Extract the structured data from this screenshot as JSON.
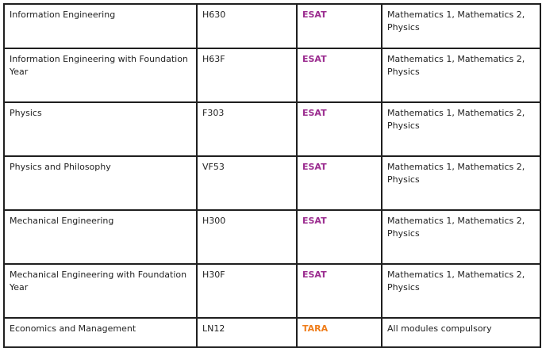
{
  "colors": {
    "border": "#1f1f1f",
    "text": "#222222",
    "esat": "#9b2c8f",
    "tara": "#ef7d1a"
  },
  "rows": [
    {
      "course": "Information Engineering",
      "code": "H630",
      "test": "ESAT",
      "test_color": "#9b2c8f",
      "requirements": "Mathematics 1, Mathematics 2, Physics"
    },
    {
      "course": "Information Engineering with Foundation Year",
      "code": "H63F",
      "test": "ESAT",
      "test_color": "#9b2c8f",
      "requirements": "Mathematics 1, Mathematics 2, Physics"
    },
    {
      "course": "Physics",
      "code": "F303",
      "test": "ESAT",
      "test_color": "#9b2c8f",
      "requirements": "Mathematics 1, Mathematics 2, Physics"
    },
    {
      "course": "Physics and Philosophy",
      "code": "VF53",
      "test": "ESAT",
      "test_color": "#9b2c8f",
      "requirements": "Mathematics 1, Mathematics 2, Physics"
    },
    {
      "course": "Mechanical Engineering",
      "code": "H300",
      "test": "ESAT",
      "test_color": "#9b2c8f",
      "requirements": "Mathematics 1, Mathematics 2, Physics"
    },
    {
      "course": "Mechanical Engineering with Foundation Year",
      "code": "H30F",
      "test": "ESAT",
      "test_color": "#9b2c8f",
      "requirements": "Mathematics 1, Mathematics 2, Physics"
    },
    {
      "course": "Economics and Management",
      "code": "LN12",
      "test": "TARA",
      "test_color": "#ef7d1a",
      "requirements": "All modules compulsory"
    }
  ]
}
